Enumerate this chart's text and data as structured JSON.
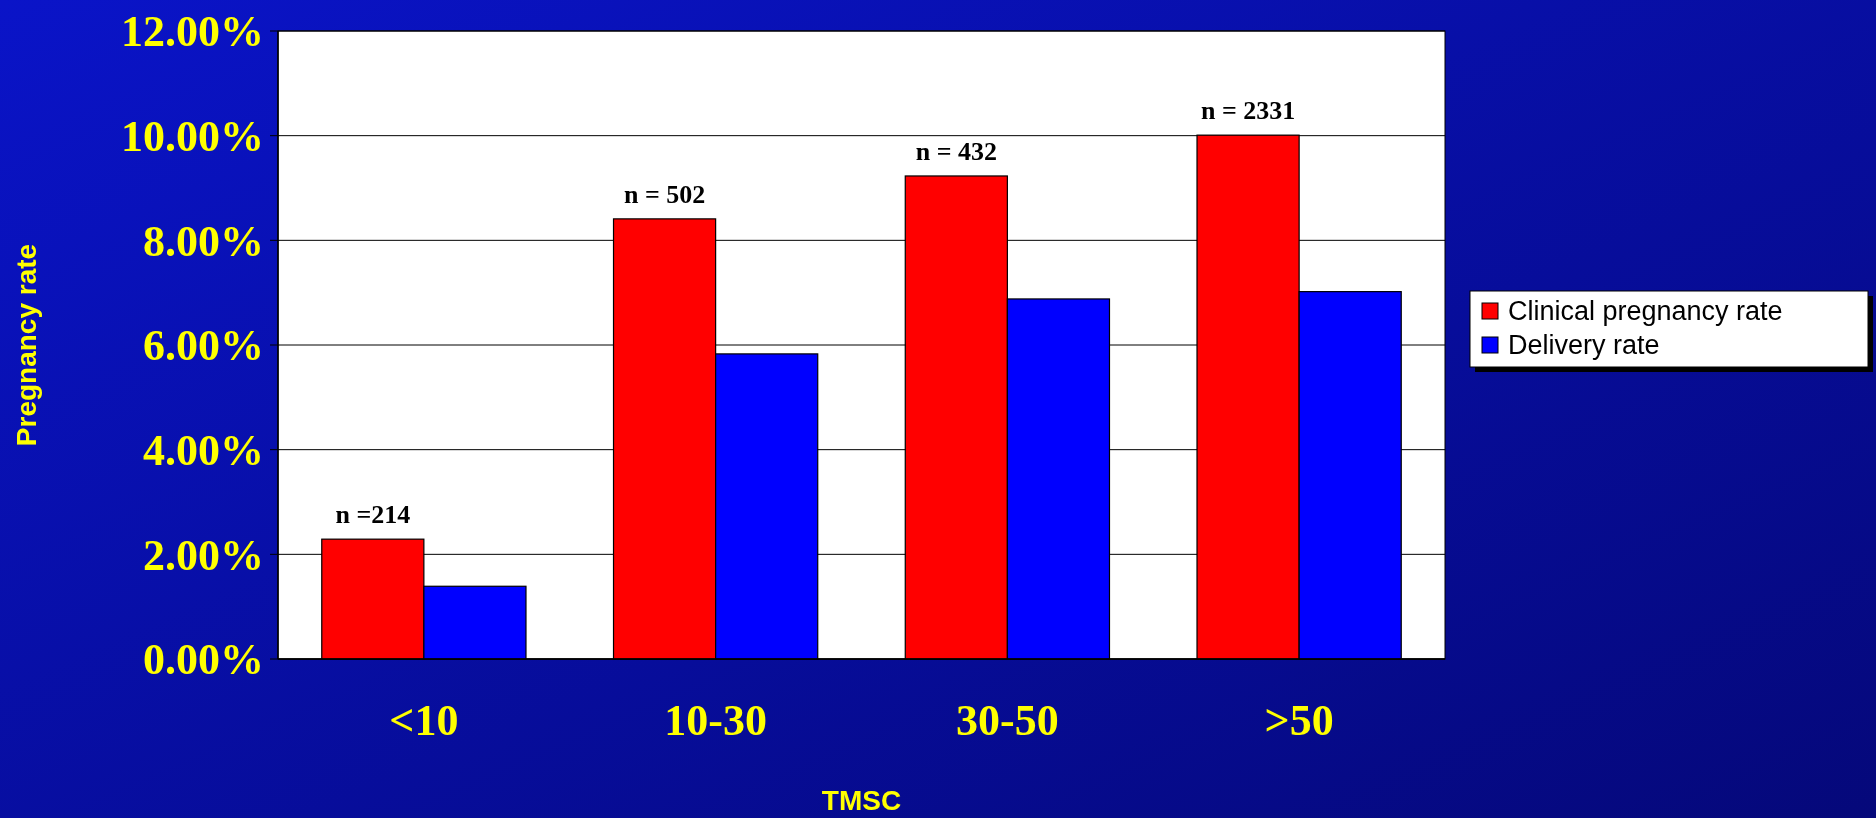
{
  "chart_data": {
    "type": "bar",
    "xlabel": "TMSC",
    "ylabel": "Pregnancy rate",
    "categories": [
      "<10",
      "10-30",
      "30-50",
      ">50"
    ],
    "series": [
      {
        "name": "Clinical pregnancy rate",
        "color": "#ff0000",
        "values": [
          2.29,
          8.41,
          9.23,
          10.01
        ]
      },
      {
        "name": "Delivery rate",
        "color": "#0000ff",
        "values": [
          1.39,
          5.83,
          6.88,
          7.02
        ]
      }
    ],
    "ylim": [
      0,
      12
    ],
    "yticks": [
      {
        "value": 0,
        "label": "0.00%"
      },
      {
        "value": 2,
        "label": "2.00%"
      },
      {
        "value": 4,
        "label": "4.00%"
      },
      {
        "value": 6,
        "label": "6.00%"
      },
      {
        "value": 8,
        "label": "8.00%"
      },
      {
        "value": 10,
        "label": "10.00%"
      },
      {
        "value": 12,
        "label": "12.00%"
      }
    ],
    "annotations": [
      {
        "text": "n =214",
        "x": "<10",
        "y": 2.29
      },
      {
        "text": "n = 502",
        "x": "10-30",
        "y": 8.41
      },
      {
        "text": "n = 432",
        "x": "30-50",
        "y": 9.23
      },
      {
        "text": "n = 2331",
        "x": ">50",
        "y": 10.01
      }
    ],
    "grid": "y",
    "legend": "right"
  }
}
